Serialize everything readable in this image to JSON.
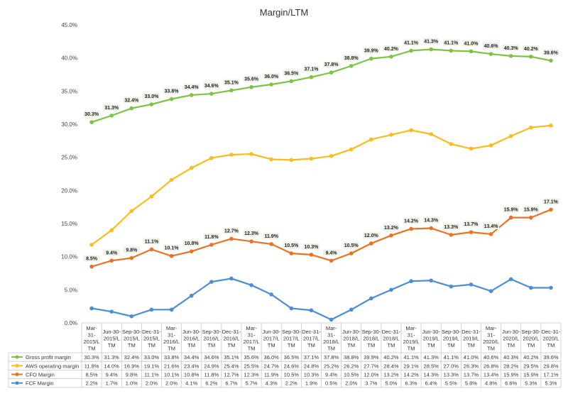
{
  "chart_data": {
    "type": "line",
    "title": "Margin/LTM",
    "ylim": [
      0,
      45
    ],
    "yticks": [
      "0.0%",
      "5.0%",
      "10.0%",
      "15.0%",
      "20.0%",
      "25.0%",
      "30.0%",
      "35.0%",
      "40.0%",
      "45.0%"
    ],
    "grid": false,
    "legend": "bottom data table",
    "categories": [
      [
        "Mar-",
        "31-",
        "2015/L",
        "TM"
      ],
      [
        "Jun-30-",
        "2015/L",
        "TM"
      ],
      [
        "Sep-30-",
        "2015/L",
        "TM"
      ],
      [
        "Dec-31-",
        "2015/L",
        "TM"
      ],
      [
        "Mar-",
        "31-",
        "2016/L",
        "TM"
      ],
      [
        "Jun-30-",
        "2016/L",
        "TM"
      ],
      [
        "Sep-30-",
        "2016/L",
        "TM"
      ],
      [
        "Dec-31-",
        "2016/L",
        "TM"
      ],
      [
        "Mar-",
        "31-",
        "2017/L",
        "TM"
      ],
      [
        "Jun-30-",
        "2017/L",
        "TM"
      ],
      [
        "Sep-30-",
        "2017/L",
        "TM"
      ],
      [
        "Dec-31-",
        "2017/L",
        "TM"
      ],
      [
        "Mar-",
        "31-",
        "2018/L",
        "TM"
      ],
      [
        "Jun-30-",
        "2018/L",
        "TM"
      ],
      [
        "Sep-30-",
        "2018/L",
        "TM"
      ],
      [
        "Dec-31-",
        "2018/L",
        "TM"
      ],
      [
        "Mar-",
        "31-",
        "2019/L",
        "TM"
      ],
      [
        "Jun-30-",
        "2019/L",
        "TM"
      ],
      [
        "Sep-30-",
        "2019/L",
        "TM"
      ],
      [
        "Dec-31-",
        "2019/L",
        "TM"
      ],
      [
        "Mar-",
        "31-",
        "2020/L",
        "TM"
      ],
      [
        "Jun-30-",
        "2020/L",
        "TM"
      ],
      [
        "Sep-30-",
        "2020/L",
        "TM"
      ],
      [
        "Dec-31-",
        "2020/L",
        "TM"
      ]
    ],
    "series": [
      {
        "name": "Gross profit margin",
        "color": "#7DC242",
        "values": [
          30.3,
          31.3,
          32.4,
          33.0,
          33.8,
          34.4,
          34.6,
          35.1,
          35.6,
          36.0,
          36.5,
          37.1,
          37.8,
          38.8,
          39.9,
          40.2,
          41.1,
          41.3,
          41.1,
          41.0,
          40.6,
          40.3,
          40.2,
          39.6
        ],
        "data_labels": true
      },
      {
        "name": "AWS operating margin",
        "color": "#FDBB1C",
        "values": [
          11.8,
          14.0,
          16.9,
          19.1,
          21.6,
          23.4,
          24.9,
          25.4,
          25.5,
          24.7,
          24.6,
          24.8,
          25.2,
          26.2,
          27.7,
          28.4,
          29.1,
          28.5,
          27.0,
          26.3,
          26.8,
          28.2,
          29.5,
          29.8
        ],
        "data_labels": false
      },
      {
        "name": "CFO Margin",
        "color": "#ED7124",
        "values": [
          8.5,
          9.4,
          9.8,
          11.1,
          10.1,
          10.8,
          11.8,
          12.7,
          12.3,
          11.9,
          10.5,
          10.3,
          9.4,
          10.5,
          12.0,
          13.2,
          14.2,
          14.3,
          13.3,
          13.7,
          13.4,
          15.9,
          15.9,
          17.1
        ],
        "data_labels": true
      },
      {
        "name": "FCF Margin",
        "color": "#4A8FD4",
        "values": [
          2.2,
          1.7,
          1.0,
          2.0,
          2.0,
          4.1,
          6.2,
          6.7,
          5.7,
          4.3,
          2.2,
          1.9,
          0.5,
          2.0,
          3.7,
          5.0,
          6.3,
          6.4,
          5.5,
          5.8,
          4.8,
          6.6,
          5.3,
          5.3
        ],
        "data_labels": false
      }
    ]
  }
}
